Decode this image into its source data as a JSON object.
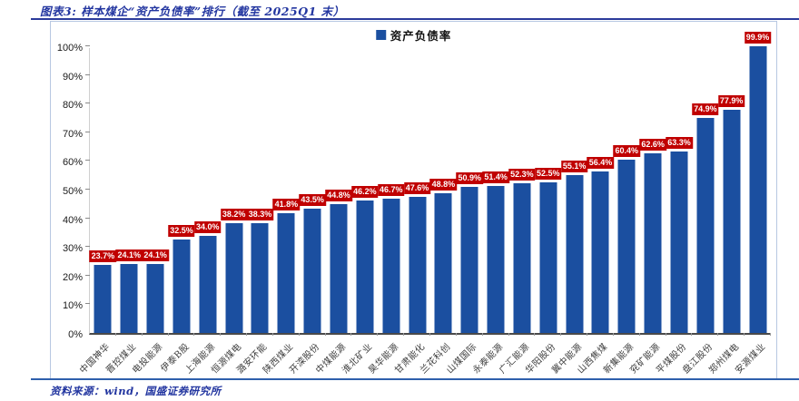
{
  "header": {
    "title": "图表3: 样本煤企“资产负债率”排行（截至 2025Q1 末）"
  },
  "chart_data": {
    "type": "bar",
    "title": "样本煤企“资产负债率”排行（截至 2025Q1 末）",
    "legend": [
      "资产负债率"
    ],
    "categories": [
      "中国神华",
      "晋控煤业",
      "电投能源",
      "伊泰B股",
      "上海能源",
      "恒源煤电",
      "潞安环能",
      "陕西煤业",
      "开滦股份",
      "中煤能源",
      "淮北矿业",
      "昊华能源",
      "甘肃能化",
      "兰花科创",
      "山煤国际",
      "永泰能源",
      "广汇能源",
      "华阳股份",
      "冀中能源",
      "山西焦煤",
      "新集能源",
      "兖矿能源",
      "平煤股份",
      "盘江股份",
      "郑州煤电",
      "安源煤业"
    ],
    "values": [
      23.7,
      24.1,
      24.1,
      32.5,
      34.0,
      38.2,
      38.3,
      41.8,
      43.5,
      44.8,
      46.2,
      46.7,
      47.6,
      48.8,
      50.9,
      51.4,
      52.3,
      52.5,
      55.1,
      56.4,
      60.4,
      62.6,
      63.3,
      74.9,
      77.9,
      99.9
    ],
    "value_suffix": "%",
    "ylim": [
      0,
      100
    ],
    "yticks": [
      "0%",
      "10%",
      "20%",
      "30%",
      "40%",
      "50%",
      "60%",
      "70%",
      "80%",
      "90%",
      "100%"
    ],
    "grid": false,
    "legend_position": "top-center",
    "colors": {
      "bar": "#1B4FA0",
      "value_label_bg": "#C00000",
      "value_label_text": "#FFFFFF"
    }
  },
  "footer": {
    "source": "资料来源：wind，国盛证券研究所"
  },
  "colors": {
    "title_text": "#2336A0",
    "top_rule": "#2B3B9B",
    "bottom_rule": "#2E5FAC",
    "frame_border": "#B8C8E2"
  }
}
